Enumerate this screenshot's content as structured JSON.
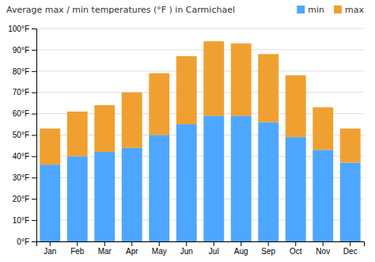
{
  "chart_data": {
    "type": "bar",
    "title": "Average max / min temperatures (°F ) in Carmichael",
    "categories": [
      "Jan",
      "Feb",
      "Mar",
      "Apr",
      "May",
      "Jun",
      "Jul",
      "Aug",
      "Sep",
      "Oct",
      "Nov",
      "Dec"
    ],
    "series": [
      {
        "name": "min",
        "color": "#4da6ff",
        "values": [
          36,
          40,
          42,
          44,
          50,
          55,
          59,
          59,
          56,
          49,
          43,
          37
        ]
      },
      {
        "name": "max",
        "color": "#f0a030",
        "values": [
          17,
          21,
          22,
          26,
          29,
          32,
          35,
          34,
          32,
          29,
          20,
          16
        ]
      }
    ],
    "stacked": true,
    "ylim": [
      0,
      100
    ],
    "yticks": [
      {
        "value": 0,
        "label": "0°F"
      },
      {
        "value": 10,
        "label": "10°F"
      },
      {
        "value": 20,
        "label": "20°F"
      },
      {
        "value": 30,
        "label": "30°F"
      },
      {
        "value": 40,
        "label": "40°F"
      },
      {
        "value": 50,
        "label": "50°F"
      },
      {
        "value": 60,
        "label": "60°F"
      },
      {
        "value": 70,
        "label": "70°F"
      },
      {
        "value": 80,
        "label": "80°F"
      },
      {
        "value": 90,
        "label": "90°F"
      },
      {
        "value": 100,
        "label": "100°F"
      }
    ],
    "grid": true,
    "legend": "upper right"
  }
}
